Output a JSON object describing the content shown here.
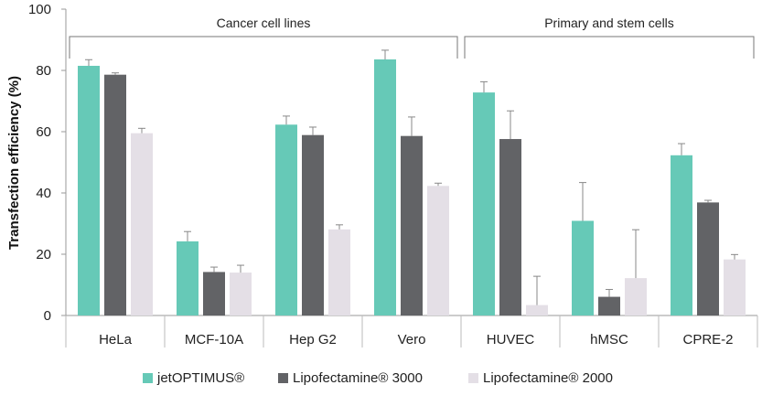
{
  "chart_data": {
    "type": "bar",
    "title": "",
    "xlabel": "",
    "ylabel": "Transfection efficiency (%)",
    "ylim": [
      0,
      100
    ],
    "yticks": [
      0,
      20,
      40,
      60,
      80,
      100
    ],
    "grid": false,
    "legend_position": "bottom",
    "categories": [
      "HeLa",
      "MCF-10A",
      "Hep G2",
      "Vero",
      "HUVEC",
      "hMSC",
      "CPRE-2"
    ],
    "series": [
      {
        "name": "jetOPTIMUS®",
        "color": "#66c9b7",
        "values": [
          81.5,
          24.2,
          62.3,
          83.6,
          72.8,
          30.9,
          52.3
        ],
        "errors": [
          2.0,
          3.2,
          2.8,
          3.0,
          3.5,
          12.5,
          3.8
        ]
      },
      {
        "name": "Lipofectamine® 3000",
        "color": "#626366",
        "values": [
          78.6,
          14.2,
          58.9,
          58.6,
          57.6,
          6.1,
          36.9
        ],
        "errors": [
          0.6,
          1.6,
          2.6,
          6.2,
          9.2,
          2.4,
          0.7
        ]
      },
      {
        "name": "Lipofectamine® 2000",
        "color": "#e4dfe6",
        "values": [
          59.5,
          14.0,
          28.1,
          42.3,
          3.4,
          12.2,
          18.3
        ],
        "errors": [
          1.6,
          2.4,
          1.5,
          0.9,
          9.4,
          15.8,
          1.6
        ]
      }
    ],
    "annotations": [
      {
        "text": "Cancer cell lines",
        "start_category": 0,
        "end_category": 3
      },
      {
        "text": "Primary and stem cells",
        "start_category": 4,
        "end_category": 6
      }
    ]
  }
}
